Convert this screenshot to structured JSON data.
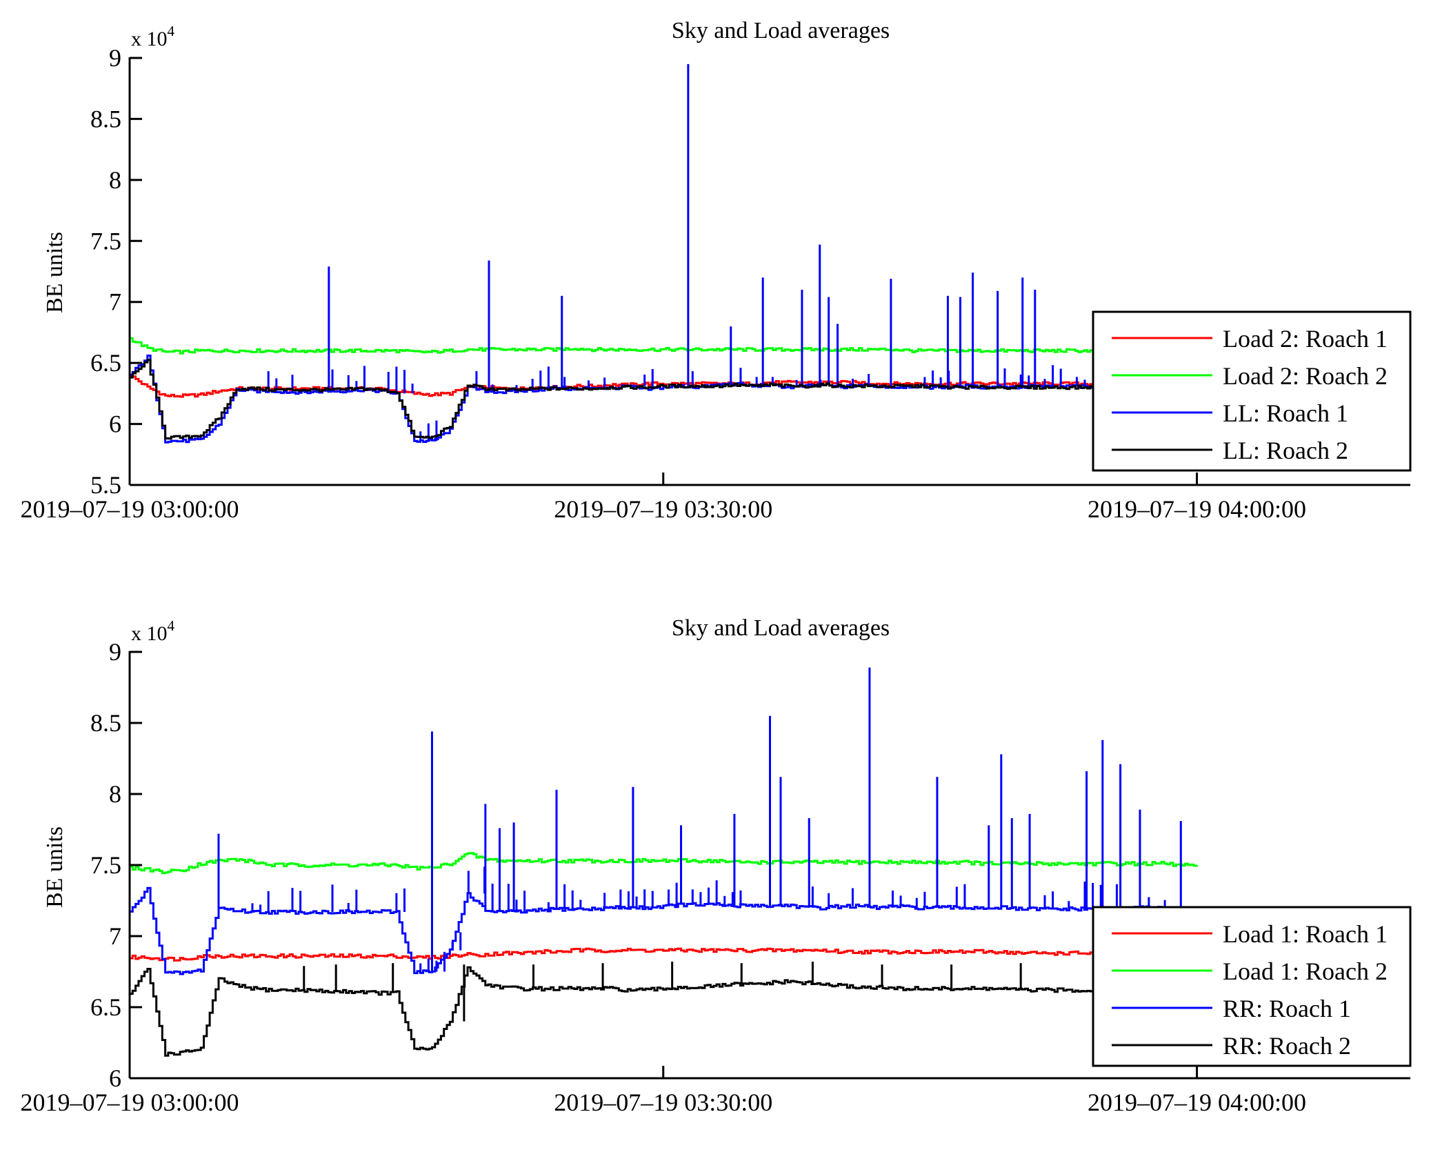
{
  "chart_data": [
    {
      "type": "line",
      "title": "Sky and Load averages",
      "xlabel": "",
      "ylabel": "BE units",
      "y_multiplier_label": "x 10",
      "y_multiplier_exp": "4",
      "ylim": [
        5.5,
        9
      ],
      "yticks": [
        "5.5",
        "6",
        "6.5",
        "7",
        "7.5",
        "8",
        "8.5",
        "9"
      ],
      "ytick_values": [
        5.5,
        6,
        6.5,
        7,
        7.5,
        8,
        8.5,
        9
      ],
      "xlim_minutes": [
        0,
        72
      ],
      "xticks": [
        "2019–07–19 03:00:00",
        "2019–07–19 03:30:00",
        "2019–07–19 04:00:00"
      ],
      "xtick_minutes": [
        0,
        30,
        60
      ],
      "legend_position": "lower-right",
      "grid": false,
      "x_minutes": [
        0,
        1,
        2,
        3,
        4,
        5,
        6,
        7,
        8,
        9,
        10,
        11,
        12,
        13,
        14,
        15,
        16,
        17,
        18,
        19,
        20,
        21,
        22,
        23,
        24,
        25,
        26,
        27,
        28,
        29,
        30,
        31,
        32,
        33,
        34,
        35,
        36,
        37,
        38,
        39,
        40,
        41,
        42,
        43,
        44,
        45,
        46,
        47,
        48,
        49,
        50,
        51,
        52,
        53,
        54,
        55,
        56,
        57,
        58,
        59,
        60
      ],
      "series": [
        {
          "name": "Load 2: Roach 1",
          "color": "#ff0000",
          "values": [
            6.4,
            6.3,
            6.23,
            6.23,
            6.24,
            6.27,
            6.29,
            6.29,
            6.29,
            6.29,
            6.29,
            6.29,
            6.29,
            6.29,
            6.29,
            6.27,
            6.25,
            6.24,
            6.25,
            6.3,
            6.3,
            6.29,
            6.29,
            6.3,
            6.3,
            6.31,
            6.31,
            6.32,
            6.32,
            6.33,
            6.33,
            6.33,
            6.33,
            6.33,
            6.33,
            6.33,
            6.34,
            6.34,
            6.34,
            6.34,
            6.34,
            6.34,
            6.33,
            6.33,
            6.33,
            6.33,
            6.33,
            6.33,
            6.33,
            6.33,
            6.33,
            6.33,
            6.33,
            6.33,
            6.33,
            6.33,
            6.33,
            6.33,
            6.33,
            6.32,
            6.32
          ]
        },
        {
          "name": "Load 2: Roach 2",
          "color": "#00ff00",
          "values": [
            6.7,
            6.62,
            6.59,
            6.59,
            6.6,
            6.6,
            6.6,
            6.6,
            6.6,
            6.6,
            6.6,
            6.6,
            6.6,
            6.6,
            6.6,
            6.6,
            6.59,
            6.59,
            6.6,
            6.61,
            6.61,
            6.61,
            6.61,
            6.61,
            6.61,
            6.62,
            6.61,
            6.61,
            6.61,
            6.61,
            6.61,
            6.61,
            6.61,
            6.61,
            6.61,
            6.61,
            6.61,
            6.61,
            6.61,
            6.61,
            6.61,
            6.61,
            6.61,
            6.61,
            6.6,
            6.6,
            6.6,
            6.6,
            6.6,
            6.6,
            6.6,
            6.6,
            6.6,
            6.6,
            6.6,
            6.6,
            6.6,
            6.6,
            6.6,
            6.6,
            6.6
          ]
        },
        {
          "name": "LL: Roach 1",
          "color": "#0000ff",
          "values": [
            6.4,
            6.55,
            5.86,
            5.86,
            5.87,
            6.0,
            6.28,
            6.27,
            6.27,
            6.26,
            6.26,
            6.27,
            6.27,
            6.28,
            6.27,
            6.25,
            5.86,
            5.86,
            5.95,
            6.3,
            6.27,
            6.26,
            6.27,
            6.28,
            6.3,
            6.28,
            6.3,
            6.29,
            6.31,
            6.28,
            6.3,
            6.31,
            6.3,
            6.32,
            6.33,
            6.31,
            6.32,
            6.3,
            6.31,
            6.32,
            6.3,
            6.32,
            6.31,
            6.3,
            6.31,
            6.3,
            6.3,
            6.31,
            6.3,
            6.31,
            6.3,
            6.31,
            6.3,
            6.31,
            6.3,
            6.31,
            6.3,
            6.31,
            6.3,
            6.3,
            6.3
          ],
          "spikes": [
            {
              "minute": 11.2,
              "value": 7.29
            },
            {
              "minute": 20.2,
              "value": 7.34
            },
            {
              "minute": 24.3,
              "value": 7.05
            },
            {
              "minute": 31.4,
              "value": 8.95
            },
            {
              "minute": 33.8,
              "value": 6.8
            },
            {
              "minute": 35.6,
              "value": 7.2
            },
            {
              "minute": 37.8,
              "value": 7.1
            },
            {
              "minute": 38.8,
              "value": 7.47
            },
            {
              "minute": 39.3,
              "value": 7.04
            },
            {
              "minute": 39.8,
              "value": 6.82
            },
            {
              "minute": 42.8,
              "value": 7.19
            },
            {
              "minute": 46.0,
              "value": 7.05
            },
            {
              "minute": 46.7,
              "value": 7.04
            },
            {
              "minute": 47.4,
              "value": 7.24
            },
            {
              "minute": 48.8,
              "value": 7.09
            },
            {
              "minute": 50.2,
              "value": 7.2
            },
            {
              "minute": 50.9,
              "value": 7.1
            }
          ]
        },
        {
          "name": "LL: Roach 2",
          "color": "#000000",
          "values": [
            6.38,
            6.52,
            5.89,
            5.89,
            5.91,
            6.05,
            6.29,
            6.29,
            6.28,
            6.28,
            6.28,
            6.28,
            6.28,
            6.29,
            6.28,
            6.26,
            5.89,
            5.89,
            5.98,
            6.32,
            6.29,
            6.28,
            6.28,
            6.29,
            6.29,
            6.29,
            6.29,
            6.3,
            6.3,
            6.3,
            6.31,
            6.31,
            6.31,
            6.31,
            6.32,
            6.31,
            6.32,
            6.31,
            6.31,
            6.32,
            6.31,
            6.31,
            6.31,
            6.31,
            6.31,
            6.31,
            6.3,
            6.3,
            6.3,
            6.3,
            6.3,
            6.3,
            6.3,
            6.3,
            6.3,
            6.3,
            6.29,
            6.29,
            6.29,
            6.29,
            6.29
          ]
        }
      ]
    },
    {
      "type": "line",
      "title": "Sky and Load averages",
      "xlabel": "",
      "ylabel": "BE units",
      "y_multiplier_label": "x 10",
      "y_multiplier_exp": "4",
      "ylim": [
        6,
        9
      ],
      "yticks": [
        "6",
        "6.5",
        "7",
        "7.5",
        "8",
        "8.5",
        "9"
      ],
      "ytick_values": [
        6,
        6.5,
        7,
        7.5,
        8,
        8.5,
        9
      ],
      "xlim_minutes": [
        0,
        72
      ],
      "xticks": [
        "2019–07–19 03:00:00",
        "2019–07–19 03:30:00",
        "2019–07–19 04:00:00"
      ],
      "xtick_minutes": [
        0,
        30,
        60
      ],
      "legend_position": "lower-right",
      "grid": false,
      "x_minutes": [
        0,
        1,
        2,
        3,
        4,
        5,
        6,
        7,
        8,
        9,
        10,
        11,
        12,
        13,
        14,
        15,
        16,
        17,
        18,
        19,
        20,
        21,
        22,
        23,
        24,
        25,
        26,
        27,
        28,
        29,
        30,
        31,
        32,
        33,
        34,
        35,
        36,
        37,
        38,
        39,
        40,
        41,
        42,
        43,
        44,
        45,
        46,
        47,
        48,
        49,
        50,
        51,
        52,
        53,
        54,
        55,
        56,
        57,
        58,
        59,
        60
      ],
      "series": [
        {
          "name": "Load 1: Roach 1",
          "color": "#ff0000",
          "values": [
            6.85,
            6.85,
            6.84,
            6.84,
            6.86,
            6.86,
            6.86,
            6.86,
            6.86,
            6.86,
            6.86,
            6.86,
            6.86,
            6.86,
            6.86,
            6.86,
            6.85,
            6.85,
            6.86,
            6.87,
            6.87,
            6.88,
            6.88,
            6.89,
            6.89,
            6.9,
            6.9,
            6.9,
            6.9,
            6.9,
            6.9,
            6.9,
            6.9,
            6.9,
            6.9,
            6.9,
            6.9,
            6.9,
            6.9,
            6.9,
            6.89,
            6.89,
            6.89,
            6.89,
            6.89,
            6.89,
            6.89,
            6.89,
            6.89,
            6.89,
            6.88,
            6.88,
            6.88,
            6.88,
            6.88,
            6.88,
            6.88,
            6.88,
            6.88,
            6.88,
            6.88
          ]
        },
        {
          "name": "Load 1: Roach 2",
          "color": "#00ff00",
          "values": [
            7.48,
            7.47,
            7.45,
            7.47,
            7.51,
            7.53,
            7.54,
            7.52,
            7.5,
            7.5,
            7.5,
            7.5,
            7.5,
            7.5,
            7.5,
            7.5,
            7.48,
            7.48,
            7.51,
            7.58,
            7.54,
            7.53,
            7.53,
            7.53,
            7.53,
            7.53,
            7.53,
            7.53,
            7.53,
            7.53,
            7.53,
            7.53,
            7.53,
            7.53,
            7.52,
            7.52,
            7.52,
            7.52,
            7.52,
            7.52,
            7.52,
            7.52,
            7.52,
            7.52,
            7.52,
            7.52,
            7.52,
            7.52,
            7.51,
            7.51,
            7.51,
            7.51,
            7.51,
            7.51,
            7.51,
            7.51,
            7.51,
            7.51,
            7.51,
            7.5,
            7.5
          ]
        },
        {
          "name": "RR: Roach 1",
          "color": "#0000ff",
          "values": [
            7.17,
            7.33,
            6.74,
            6.74,
            6.76,
            7.2,
            7.18,
            7.17,
            7.17,
            7.17,
            7.17,
            7.17,
            7.17,
            7.17,
            7.17,
            7.17,
            6.75,
            6.75,
            6.9,
            7.3,
            7.18,
            7.17,
            7.17,
            7.18,
            7.19,
            7.19,
            7.19,
            7.2,
            7.2,
            7.2,
            7.21,
            7.22,
            7.22,
            7.22,
            7.21,
            7.22,
            7.21,
            7.22,
            7.2,
            7.2,
            7.21,
            7.21,
            7.2,
            7.21,
            7.2,
            7.2,
            7.2,
            7.2,
            7.2,
            7.2,
            7.19,
            7.19,
            7.19,
            7.19,
            7.19,
            7.19,
            7.19,
            7.2,
            7.2,
            7.19,
            7.19
          ],
          "spikes": [
            {
              "minute": 5.0,
              "value": 7.72
            },
            {
              "minute": 17.0,
              "value": 8.44
            },
            {
              "minute": 20.0,
              "value": 7.93
            },
            {
              "minute": 20.8,
              "value": 7.76
            },
            {
              "minute": 21.6,
              "value": 7.8
            },
            {
              "minute": 24.0,
              "value": 8.03
            },
            {
              "minute": 28.3,
              "value": 8.05
            },
            {
              "minute": 31.0,
              "value": 7.78
            },
            {
              "minute": 34.0,
              "value": 7.86
            },
            {
              "minute": 36.0,
              "value": 8.55
            },
            {
              "minute": 36.6,
              "value": 8.12
            },
            {
              "minute": 38.2,
              "value": 7.83
            },
            {
              "minute": 41.6,
              "value": 8.89
            },
            {
              "minute": 45.4,
              "value": 8.12
            },
            {
              "minute": 48.3,
              "value": 7.78
            },
            {
              "minute": 49.0,
              "value": 8.28
            },
            {
              "minute": 49.6,
              "value": 7.83
            },
            {
              "minute": 50.6,
              "value": 7.86
            },
            {
              "minute": 53.8,
              "value": 8.16
            },
            {
              "minute": 54.7,
              "value": 8.38
            },
            {
              "minute": 55.7,
              "value": 8.21
            },
            {
              "minute": 56.8,
              "value": 7.89
            },
            {
              "minute": 59.1,
              "value": 7.81
            }
          ]
        },
        {
          "name": "RR: Roach 2",
          "color": "#000000",
          "values": [
            6.59,
            6.77,
            6.17,
            6.18,
            6.21,
            6.7,
            6.65,
            6.63,
            6.62,
            6.62,
            6.62,
            6.61,
            6.61,
            6.61,
            6.6,
            6.6,
            6.2,
            6.21,
            6.4,
            6.78,
            6.66,
            6.64,
            6.63,
            6.63,
            6.63,
            6.63,
            6.63,
            6.63,
            6.62,
            6.62,
            6.63,
            6.64,
            6.64,
            6.65,
            6.66,
            6.66,
            6.67,
            6.68,
            6.67,
            6.66,
            6.65,
            6.64,
            6.64,
            6.63,
            6.63,
            6.63,
            6.63,
            6.63,
            6.63,
            6.63,
            6.62,
            6.62,
            6.62,
            6.62,
            6.62,
            6.62,
            6.62,
            6.62,
            6.62,
            6.61,
            6.61
          ],
          "spikes": [
            {
              "minute": 9.8,
              "value": 6.79
            },
            {
              "minute": 11.6,
              "value": 6.8
            },
            {
              "minute": 14.8,
              "value": 6.81
            },
            {
              "minute": 18.8,
              "value": 6.8
            },
            {
              "minute": 22.7,
              "value": 6.8
            },
            {
              "minute": 26.6,
              "value": 6.81
            },
            {
              "minute": 30.5,
              "value": 6.82
            },
            {
              "minute": 34.4,
              "value": 6.81
            },
            {
              "minute": 38.4,
              "value": 6.82
            },
            {
              "minute": 42.3,
              "value": 6.8
            },
            {
              "minute": 46.2,
              "value": 6.8
            },
            {
              "minute": 50.1,
              "value": 6.81
            }
          ]
        }
      ]
    }
  ]
}
